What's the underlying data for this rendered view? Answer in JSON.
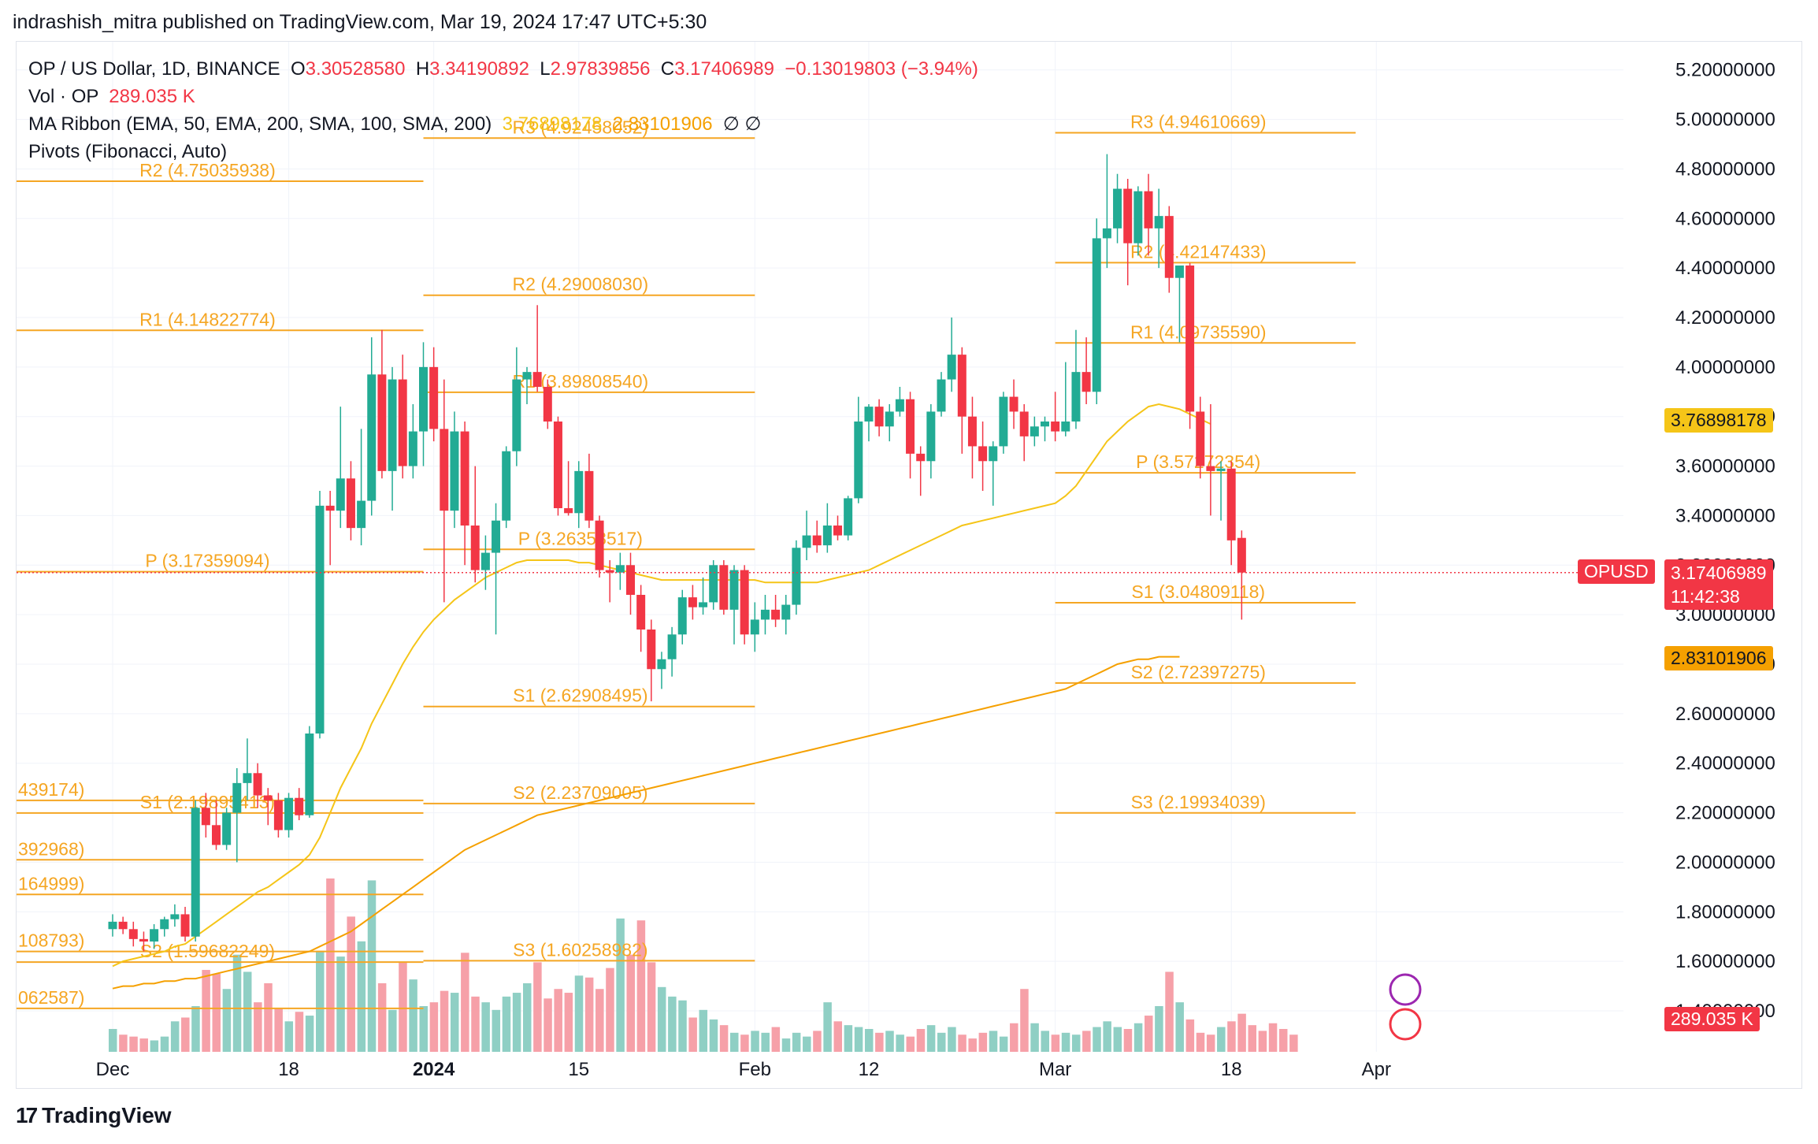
{
  "header": "indrashish_mitra published on TradingView.com, Mar 19, 2024 17:47 UTC+5:30",
  "legend": {
    "symbol": "OP / US Dollar, 1D, BINANCE",
    "o_label": "O",
    "o": "3.30528580",
    "h_label": "H",
    "h": "3.34190892",
    "l_label": "L",
    "l": "2.97839856",
    "c_label": "C",
    "c": "3.17406989",
    "change": "−0.13019803 (−3.94%)",
    "vol_label": "Vol · OP",
    "vol": "289.035 K",
    "ma_label": "MA Ribbon (EMA, 50, EMA, 200, SMA, 100, SMA, 200)",
    "ma1": "3.76898178",
    "ma2": "2.83101906",
    "ma_rest": "∅ ∅",
    "pivots_label": "Pivots (Fibonacci, Auto)"
  },
  "badges": {
    "ma1": "3.76898178",
    "price_symbol": "OPUSD",
    "price": "3.17406989",
    "countdown": "11:42:38",
    "ma2": "2.83101906",
    "volume": "289.035 K"
  },
  "footer": {
    "logo": "17",
    "brand": "TradingView"
  },
  "colors": {
    "up": "#22ab94",
    "down": "#f23645",
    "pivot": "#f5a623",
    "ma_fast": "#f5c518",
    "ma_slow": "#f5a000",
    "up_vol": "#8fcfc4",
    "down_vol": "#f6a0a8"
  },
  "chart_data": {
    "type": "candlestick",
    "y_ticks": [
      "5.20000000",
      "5.00000000",
      "4.80000000",
      "4.60000000",
      "4.40000000",
      "4.20000000",
      "4.00000000",
      "3.80000000",
      "3.60000000",
      "3.40000000",
      "3.20000000",
      "3.00000000",
      "2.80000000",
      "2.60000000",
      "2.40000000",
      "2.20000000",
      "2.00000000",
      "1.80000000",
      "1.60000000",
      "1.40000000"
    ],
    "x_ticks": [
      {
        "label": "Dec",
        "day": 0
      },
      {
        "label": "18",
        "day": 17
      },
      {
        "label": "2024",
        "day": 31
      },
      {
        "label": "15",
        "day": 45
      },
      {
        "label": "Feb",
        "day": 62
      },
      {
        "label": "12",
        "day": 73
      },
      {
        "label": "Mar",
        "day": 91
      },
      {
        "label": "18",
        "day": 108
      },
      {
        "label": "Apr",
        "day": 122
      }
    ],
    "ylim": [
      1.4,
      5.25
    ],
    "candles": [
      {
        "o": 1.73,
        "h": 1.79,
        "l": 1.7,
        "c": 1.76
      },
      {
        "o": 1.76,
        "h": 1.78,
        "l": 1.71,
        "c": 1.73
      },
      {
        "o": 1.73,
        "h": 1.76,
        "l": 1.66,
        "c": 1.69
      },
      {
        "o": 1.69,
        "h": 1.72,
        "l": 1.64,
        "c": 1.68
      },
      {
        "o": 1.68,
        "h": 1.75,
        "l": 1.65,
        "c": 1.73
      },
      {
        "o": 1.73,
        "h": 1.78,
        "l": 1.7,
        "c": 1.77
      },
      {
        "o": 1.77,
        "h": 1.83,
        "l": 1.74,
        "c": 1.79
      },
      {
        "o": 1.79,
        "h": 1.82,
        "l": 1.68,
        "c": 1.7
      },
      {
        "o": 1.7,
        "h": 2.25,
        "l": 1.68,
        "c": 2.22
      },
      {
        "o": 2.22,
        "h": 2.28,
        "l": 2.1,
        "c": 2.15
      },
      {
        "o": 2.15,
        "h": 2.25,
        "l": 2.05,
        "c": 2.07
      },
      {
        "o": 2.07,
        "h": 2.22,
        "l": 2.05,
        "c": 2.2
      },
      {
        "o": 2.2,
        "h": 2.38,
        "l": 2.0,
        "c": 2.32
      },
      {
        "o": 2.32,
        "h": 2.5,
        "l": 2.25,
        "c": 2.36
      },
      {
        "o": 2.36,
        "h": 2.4,
        "l": 2.22,
        "c": 2.27
      },
      {
        "o": 2.27,
        "h": 2.3,
        "l": 2.15,
        "c": 2.25
      },
      {
        "o": 2.25,
        "h": 2.28,
        "l": 2.1,
        "c": 2.13
      },
      {
        "o": 2.13,
        "h": 2.28,
        "l": 2.1,
        "c": 2.26
      },
      {
        "o": 2.26,
        "h": 2.3,
        "l": 2.17,
        "c": 2.19
      },
      {
        "o": 2.19,
        "h": 2.55,
        "l": 2.18,
        "c": 2.52
      },
      {
        "o": 2.52,
        "h": 3.5,
        "l": 2.5,
        "c": 3.44
      },
      {
        "o": 3.44,
        "h": 3.5,
        "l": 3.2,
        "c": 3.42
      },
      {
        "o": 3.42,
        "h": 3.84,
        "l": 3.35,
        "c": 3.55
      },
      {
        "o": 3.55,
        "h": 3.62,
        "l": 3.3,
        "c": 3.35
      },
      {
        "o": 3.35,
        "h": 3.75,
        "l": 3.28,
        "c": 3.46
      },
      {
        "o": 3.46,
        "h": 4.12,
        "l": 3.4,
        "c": 3.97
      },
      {
        "o": 3.97,
        "h": 4.15,
        "l": 3.55,
        "c": 3.58
      },
      {
        "o": 3.58,
        "h": 4.0,
        "l": 3.42,
        "c": 3.95
      },
      {
        "o": 3.95,
        "h": 4.05,
        "l": 3.55,
        "c": 3.6
      },
      {
        "o": 3.6,
        "h": 3.85,
        "l": 3.55,
        "c": 3.74
      },
      {
        "o": 3.74,
        "h": 4.1,
        "l": 3.6,
        "c": 4.0
      },
      {
        "o": 4.0,
        "h": 4.08,
        "l": 3.7,
        "c": 3.75
      },
      {
        "o": 3.75,
        "h": 3.95,
        "l": 3.05,
        "c": 3.42
      },
      {
        "o": 3.42,
        "h": 3.82,
        "l": 3.35,
        "c": 3.74
      },
      {
        "o": 3.74,
        "h": 3.78,
        "l": 3.2,
        "c": 3.36
      },
      {
        "o": 3.36,
        "h": 3.6,
        "l": 3.13,
        "c": 3.18
      },
      {
        "o": 3.18,
        "h": 3.32,
        "l": 3.1,
        "c": 3.25
      },
      {
        "o": 3.25,
        "h": 3.45,
        "l": 2.92,
        "c": 3.38
      },
      {
        "o": 3.38,
        "h": 3.68,
        "l": 3.35,
        "c": 3.66
      },
      {
        "o": 3.66,
        "h": 4.08,
        "l": 3.6,
        "c": 3.95
      },
      {
        "o": 3.95,
        "h": 4.0,
        "l": 3.85,
        "c": 3.98
      },
      {
        "o": 3.98,
        "h": 4.25,
        "l": 3.9,
        "c": 3.92
      },
      {
        "o": 3.92,
        "h": 3.95,
        "l": 3.75,
        "c": 3.78
      },
      {
        "o": 3.78,
        "h": 3.8,
        "l": 3.4,
        "c": 3.43
      },
      {
        "o": 3.43,
        "h": 3.62,
        "l": 3.4,
        "c": 3.41
      },
      {
        "o": 3.41,
        "h": 3.62,
        "l": 3.35,
        "c": 3.58
      },
      {
        "o": 3.58,
        "h": 3.65,
        "l": 3.35,
        "c": 3.38
      },
      {
        "o": 3.38,
        "h": 3.4,
        "l": 3.15,
        "c": 3.18
      },
      {
        "o": 3.18,
        "h": 3.22,
        "l": 3.05,
        "c": 3.17
      },
      {
        "o": 3.17,
        "h": 3.25,
        "l": 3.1,
        "c": 3.2
      },
      {
        "o": 3.2,
        "h": 3.25,
        "l": 3.0,
        "c": 3.08
      },
      {
        "o": 3.08,
        "h": 3.12,
        "l": 2.85,
        "c": 2.94
      },
      {
        "o": 2.94,
        "h": 2.98,
        "l": 2.65,
        "c": 2.78
      },
      {
        "o": 2.78,
        "h": 2.85,
        "l": 2.7,
        "c": 2.82
      },
      {
        "o": 2.82,
        "h": 2.95,
        "l": 2.75,
        "c": 2.92
      },
      {
        "o": 2.92,
        "h": 3.1,
        "l": 2.88,
        "c": 3.07
      },
      {
        "o": 3.07,
        "h": 3.12,
        "l": 2.98,
        "c": 3.03
      },
      {
        "o": 3.03,
        "h": 3.15,
        "l": 3.0,
        "c": 3.05
      },
      {
        "o": 3.05,
        "h": 3.22,
        "l": 3.02,
        "c": 3.2
      },
      {
        "o": 3.2,
        "h": 3.22,
        "l": 3.0,
        "c": 3.02
      },
      {
        "o": 3.02,
        "h": 3.2,
        "l": 2.88,
        "c": 3.18
      },
      {
        "o": 3.18,
        "h": 3.2,
        "l": 2.88,
        "c": 2.92
      },
      {
        "o": 2.92,
        "h": 3.05,
        "l": 2.85,
        "c": 2.98
      },
      {
        "o": 2.98,
        "h": 3.08,
        "l": 2.92,
        "c": 3.02
      },
      {
        "o": 3.02,
        "h": 3.08,
        "l": 2.95,
        "c": 2.98
      },
      {
        "o": 2.98,
        "h": 3.08,
        "l": 2.92,
        "c": 3.04
      },
      {
        "o": 3.04,
        "h": 3.3,
        "l": 3.0,
        "c": 3.27
      },
      {
        "o": 3.27,
        "h": 3.42,
        "l": 3.22,
        "c": 3.32
      },
      {
        "o": 3.32,
        "h": 3.38,
        "l": 3.25,
        "c": 3.28
      },
      {
        "o": 3.28,
        "h": 3.45,
        "l": 3.25,
        "c": 3.36
      },
      {
        "o": 3.36,
        "h": 3.4,
        "l": 3.3,
        "c": 3.32
      },
      {
        "o": 3.32,
        "h": 3.48,
        "l": 3.3,
        "c": 3.47
      },
      {
        "o": 3.47,
        "h": 3.88,
        "l": 3.45,
        "c": 3.78
      },
      {
        "o": 3.78,
        "h": 3.85,
        "l": 3.7,
        "c": 3.84
      },
      {
        "o": 3.84,
        "h": 3.87,
        "l": 3.72,
        "c": 3.76
      },
      {
        "o": 3.76,
        "h": 3.85,
        "l": 3.7,
        "c": 3.82
      },
      {
        "o": 3.82,
        "h": 3.92,
        "l": 3.8,
        "c": 3.87
      },
      {
        "o": 3.87,
        "h": 3.9,
        "l": 3.55,
        "c": 3.65
      },
      {
        "o": 3.65,
        "h": 3.68,
        "l": 3.48,
        "c": 3.62
      },
      {
        "o": 3.62,
        "h": 3.85,
        "l": 3.55,
        "c": 3.82
      },
      {
        "o": 3.82,
        "h": 3.98,
        "l": 3.8,
        "c": 3.95
      },
      {
        "o": 3.95,
        "h": 4.2,
        "l": 3.9,
        "c": 4.05
      },
      {
        "o": 4.05,
        "h": 4.08,
        "l": 3.65,
        "c": 3.8
      },
      {
        "o": 3.8,
        "h": 3.88,
        "l": 3.55,
        "c": 3.68
      },
      {
        "o": 3.68,
        "h": 3.78,
        "l": 3.5,
        "c": 3.62
      },
      {
        "o": 3.62,
        "h": 3.7,
        "l": 3.44,
        "c": 3.68
      },
      {
        "o": 3.68,
        "h": 3.9,
        "l": 3.65,
        "c": 3.88
      },
      {
        "o": 3.88,
        "h": 3.95,
        "l": 3.75,
        "c": 3.82
      },
      {
        "o": 3.82,
        "h": 3.85,
        "l": 3.62,
        "c": 3.72
      },
      {
        "o": 3.72,
        "h": 3.8,
        "l": 3.68,
        "c": 3.76
      },
      {
        "o": 3.76,
        "h": 3.8,
        "l": 3.7,
        "c": 3.78
      },
      {
        "o": 3.78,
        "h": 3.9,
        "l": 3.7,
        "c": 3.74
      },
      {
        "o": 3.74,
        "h": 4.02,
        "l": 3.72,
        "c": 3.78
      },
      {
        "o": 3.78,
        "h": 4.15,
        "l": 3.75,
        "c": 3.98
      },
      {
        "o": 3.98,
        "h": 4.12,
        "l": 3.85,
        "c": 3.9
      },
      {
        "o": 3.9,
        "h": 4.6,
        "l": 3.85,
        "c": 4.52
      },
      {
        "o": 4.52,
        "h": 4.86,
        "l": 4.4,
        "c": 4.56
      },
      {
        "o": 4.56,
        "h": 4.78,
        "l": 4.5,
        "c": 4.72
      },
      {
        "o": 4.72,
        "h": 4.76,
        "l": 4.33,
        "c": 4.5
      },
      {
        "o": 4.5,
        "h": 4.73,
        "l": 4.45,
        "c": 4.71
      },
      {
        "o": 4.71,
        "h": 4.78,
        "l": 4.45,
        "c": 4.56
      },
      {
        "o": 4.56,
        "h": 4.72,
        "l": 4.4,
        "c": 4.61
      },
      {
        "o": 4.61,
        "h": 4.65,
        "l": 4.3,
        "c": 4.36
      },
      {
        "o": 4.36,
        "h": 4.4,
        "l": 4.1,
        "c": 4.41
      },
      {
        "o": 4.41,
        "h": 4.42,
        "l": 3.75,
        "c": 3.82
      },
      {
        "o": 3.82,
        "h": 3.88,
        "l": 3.55,
        "c": 3.6
      },
      {
        "o": 3.6,
        "h": 3.85,
        "l": 3.4,
        "c": 3.58
      },
      {
        "o": 3.58,
        "h": 3.62,
        "l": 3.38,
        "c": 3.59
      },
      {
        "o": 3.59,
        "h": 3.62,
        "l": 3.2,
        "c": 3.3
      },
      {
        "o": 3.31,
        "h": 3.34,
        "l": 2.98,
        "c": 3.17
      }
    ],
    "volume": [
      1.2,
      0.9,
      0.8,
      0.7,
      0.6,
      0.8,
      1.6,
      1.8,
      2.4,
      4.3,
      4.1,
      3.3,
      5.1,
      4.2,
      2.6,
      3.6,
      2.3,
      1.6,
      2.1,
      1.9,
      5.3,
      9.1,
      5.0,
      7.1,
      5.8,
      9.0,
      3.6,
      2.2,
      4.7,
      3.8,
      2.4,
      2.6,
      3.2,
      3.1,
      5.2,
      2.9,
      2.6,
      2.2,
      2.9,
      3.1,
      3.6,
      4.7,
      2.8,
      3.3,
      3.1,
      4.0,
      3.9,
      3.3,
      4.4,
      7.0,
      5.1,
      6.9,
      4.7,
      3.4,
      2.9,
      2.7,
      1.8,
      2.2,
      1.7,
      1.4,
      1.0,
      0.9,
      1.1,
      1.0,
      1.3,
      0.7,
      1.0,
      0.8,
      1.1,
      2.6,
      1.6,
      1.4,
      1.3,
      1.2,
      1.0,
      1.1,
      0.9,
      0.8,
      1.2,
      1.4,
      1.0,
      1.3,
      0.9,
      0.7,
      1.0,
      1.1,
      0.8,
      1.5,
      3.3,
      1.5,
      1.1,
      0.9,
      1.0,
      0.9,
      1.1,
      1.3,
      1.6,
      1.3,
      1.2,
      1.5,
      1.9,
      2.4,
      4.2,
      2.6,
      1.7,
      1.0,
      0.9,
      1.3,
      1.6,
      2.0,
      1.4,
      1.1,
      1.5,
      1.2,
      0.9
    ],
    "pivot_sets": [
      {
        "day_start": -100,
        "day_end": 30,
        "levels": [
          {
            "label": "R2 (4.75035938)",
            "value": 4.75035938
          },
          {
            "label": "R1 (4.14822774)",
            "value": 4.14822774
          },
          {
            "label": "P (3.17359094)",
            "value": 3.17359094
          },
          {
            "label": "S1 (2.19895413)",
            "value": 2.19895413
          },
          {
            "label": "S2 (1.59682249)",
            "value": 1.59682249
          }
        ]
      },
      {
        "day_start": -100,
        "day_end": 30,
        "levels": [
          {
            "label": "439174)",
            "value": 2.25
          },
          {
            "label": "392968)",
            "value": 2.01
          },
          {
            "label": "164999)",
            "value": 1.87
          },
          {
            "label": "108793)",
            "value": 1.64
          },
          {
            "label": "062587)",
            "value": 1.41
          }
        ]
      },
      {
        "day_start": 30,
        "day_end": 62,
        "levels": [
          {
            "label": "R3 (4.92458052)",
            "value": 4.92458052
          },
          {
            "label": "R2 (4.29008030)",
            "value": 4.2900803
          },
          {
            "label": "R1 (3.89808540)",
            "value": 3.8980854
          },
          {
            "label": "P (3.26358517)",
            "value": 3.26358517
          },
          {
            "label": "S1 (2.62908495)",
            "value": 2.62908495
          },
          {
            "label": "S2 (2.23709005)",
            "value": 2.23709005
          },
          {
            "label": "S3 (1.60258982)",
            "value": 1.60258982
          }
        ]
      },
      {
        "day_start": 91,
        "day_end": 120,
        "levels": [
          {
            "label": "R3 (4.94610669)",
            "value": 4.94610669
          },
          {
            "label": "R2 (4.42147433)",
            "value": 4.42147433
          },
          {
            "label": "R1 (4.09735590)",
            "value": 4.0973559
          },
          {
            "label": "P (3.57272354)",
            "value": 3.57272354
          },
          {
            "label": "S1 (3.04809118)",
            "value": 3.04809118
          },
          {
            "label": "S2 (2.72397275)",
            "value": 2.72397275
          },
          {
            "label": "S3 (2.19934039)",
            "value": 2.19934039
          }
        ]
      }
    ],
    "ma_fast": [
      1.58,
      1.6,
      1.61,
      1.62,
      1.63,
      1.64,
      1.66,
      1.67,
      1.7,
      1.73,
      1.76,
      1.79,
      1.82,
      1.85,
      1.88,
      1.9,
      1.93,
      1.96,
      1.99,
      2.03,
      2.1,
      2.2,
      2.3,
      2.38,
      2.46,
      2.56,
      2.64,
      2.72,
      2.8,
      2.87,
      2.93,
      2.98,
      3.02,
      3.06,
      3.09,
      3.12,
      3.15,
      3.17,
      3.19,
      3.21,
      3.22,
      3.22,
      3.22,
      3.22,
      3.22,
      3.21,
      3.21,
      3.2,
      3.19,
      3.18,
      3.17,
      3.16,
      3.15,
      3.14,
      3.14,
      3.14,
      3.14,
      3.14,
      3.14,
      3.14,
      3.14,
      3.14,
      3.14,
      3.13,
      3.13,
      3.13,
      3.13,
      3.13,
      3.13,
      3.14,
      3.15,
      3.16,
      3.17,
      3.18,
      3.2,
      3.22,
      3.24,
      3.26,
      3.28,
      3.3,
      3.32,
      3.34,
      3.36,
      3.37,
      3.38,
      3.39,
      3.4,
      3.41,
      3.42,
      3.43,
      3.44,
      3.45,
      3.48,
      3.52,
      3.58,
      3.64,
      3.7,
      3.74,
      3.78,
      3.81,
      3.84,
      3.85,
      3.84,
      3.83,
      3.81,
      3.79,
      3.77
    ],
    "ma_slow": [
      1.49,
      1.5,
      1.5,
      1.51,
      1.51,
      1.52,
      1.52,
      1.53,
      1.53,
      1.54,
      1.55,
      1.56,
      1.57,
      1.58,
      1.59,
      1.6,
      1.61,
      1.62,
      1.63,
      1.64,
      1.66,
      1.68,
      1.7,
      1.72,
      1.75,
      1.78,
      1.81,
      1.84,
      1.87,
      1.9,
      1.93,
      1.96,
      1.99,
      2.02,
      2.05,
      2.07,
      2.09,
      2.11,
      2.13,
      2.15,
      2.17,
      2.19,
      2.2,
      2.21,
      2.22,
      2.23,
      2.24,
      2.25,
      2.26,
      2.27,
      2.28,
      2.29,
      2.3,
      2.31,
      2.32,
      2.33,
      2.34,
      2.35,
      2.36,
      2.37,
      2.38,
      2.39,
      2.4,
      2.41,
      2.42,
      2.43,
      2.44,
      2.45,
      2.46,
      2.47,
      2.48,
      2.49,
      2.5,
      2.51,
      2.52,
      2.53,
      2.54,
      2.55,
      2.56,
      2.57,
      2.58,
      2.59,
      2.6,
      2.61,
      2.62,
      2.63,
      2.64,
      2.65,
      2.66,
      2.67,
      2.68,
      2.69,
      2.7,
      2.72,
      2.74,
      2.76,
      2.78,
      2.8,
      2.81,
      2.82,
      2.82,
      2.83,
      2.83,
      2.83
    ]
  }
}
